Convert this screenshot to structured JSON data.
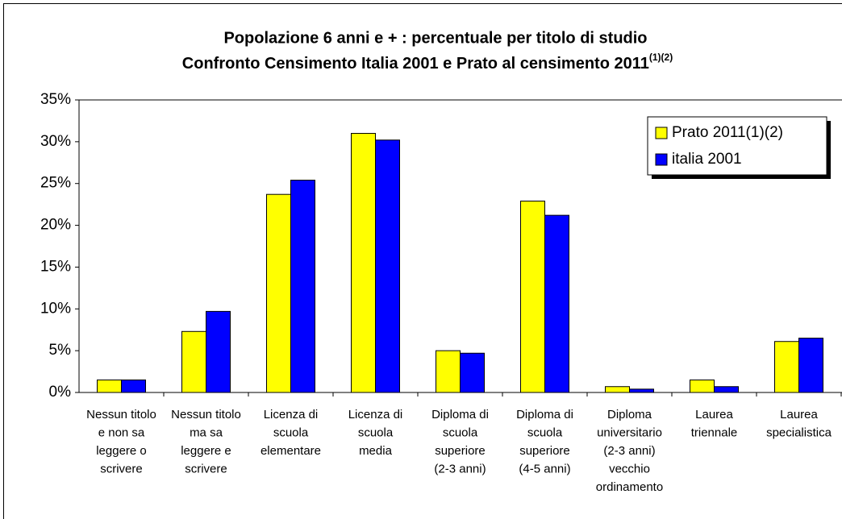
{
  "chart_data": {
    "type": "bar",
    "title": [
      "Popolazione 6 anni e + : percentuale per titolo di studio",
      "Confronto Censimento Italia 2001 e Prato al censimento 2011"
    ],
    "title_superscript": "(1)(2)",
    "categories": [
      [
        "Nessun titolo",
        "e non sa",
        "leggere o",
        "scrivere"
      ],
      [
        "Nessun titolo",
        "ma sa",
        "leggere e",
        "scrivere"
      ],
      [
        "Licenza di",
        "scuola",
        "elementare"
      ],
      [
        "Licenza di",
        "scuola",
        "media"
      ],
      [
        "Diploma di",
        "scuola",
        "superiore",
        "(2-3 anni)"
      ],
      [
        "Diploma di",
        "scuola",
        "superiore",
        "(4-5 anni)"
      ],
      [
        "Diploma",
        "universitario",
        "(2-3 anni)",
        "vecchio",
        "ordinamento"
      ],
      [
        "Laurea",
        "triennale"
      ],
      [
        "Laurea",
        "specialistica"
      ]
    ],
    "series": [
      {
        "name": "Prato 2011(1)(2)",
        "color": "#ffff00",
        "values": [
          1.5,
          7.3,
          23.7,
          31.0,
          5.0,
          22.9,
          0.7,
          1.5,
          6.1
        ]
      },
      {
        "name": "italia 2001",
        "color": "#0000ff",
        "values": [
          1.5,
          9.7,
          25.4,
          30.2,
          4.7,
          21.2,
          0.4,
          0.7,
          6.5
        ]
      }
    ],
    "ylim": [
      0,
      35
    ],
    "yticks": [
      {
        "value": 0,
        "label": "0%"
      },
      {
        "value": 5,
        "label": "5%"
      },
      {
        "value": 10,
        "label": "10%"
      },
      {
        "value": 15,
        "label": "15%"
      },
      {
        "value": 20,
        "label": "20%"
      },
      {
        "value": 25,
        "label": "25%"
      },
      {
        "value": 30,
        "label": "30%"
      },
      {
        "value": 35,
        "label": "35%"
      }
    ],
    "legend": "upper right",
    "grid": false
  }
}
